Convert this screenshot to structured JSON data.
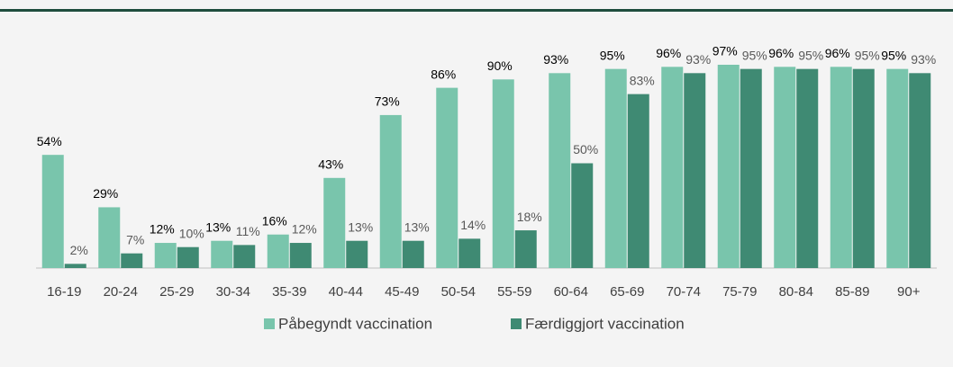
{
  "chart_data": {
    "type": "bar",
    "categories": [
      "16-19",
      "20-24",
      "25-29",
      "30-34",
      "35-39",
      "40-44",
      "45-49",
      "50-54",
      "55-59",
      "60-64",
      "65-69",
      "70-74",
      "75-79",
      "80-84",
      "85-89",
      "90+"
    ],
    "series": [
      {
        "name": "Påbegyndt vaccination",
        "color": "#79c5ac",
        "values": [
          54,
          29,
          12,
          13,
          16,
          43,
          73,
          86,
          90,
          93,
          95,
          96,
          97,
          96,
          96,
          95
        ],
        "value_labels": [
          "54%",
          "29%",
          "12%",
          "13%",
          "16%",
          "43%",
          "73%",
          "86%",
          "90%",
          "93%",
          "95%",
          "96%",
          "97%",
          "96%",
          "96%",
          "95%"
        ]
      },
      {
        "name": "Færdiggjort vaccination",
        "color": "#3f8a73",
        "values": [
          2,
          7,
          10,
          11,
          12,
          13,
          13,
          14,
          18,
          50,
          83,
          93,
          95,
          95,
          95,
          93
        ],
        "value_labels": [
          "2%",
          "7%",
          "10%",
          "11%",
          "12%",
          "13%",
          "13%",
          "14%",
          "18%",
          "50%",
          "83%",
          "93%",
          "95%",
          "95%",
          "95%",
          "93%"
        ]
      }
    ],
    "ylim": [
      0,
      100
    ],
    "legend": "bottom"
  }
}
